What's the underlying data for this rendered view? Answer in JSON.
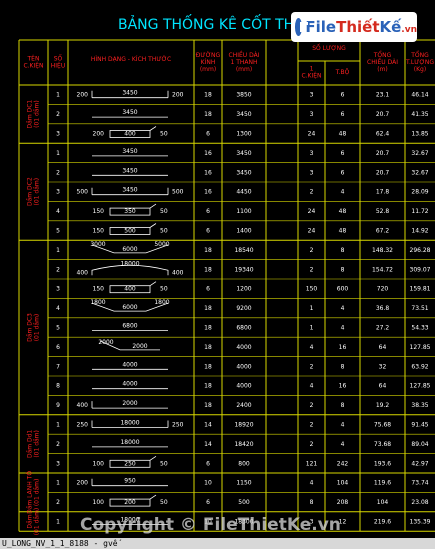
{
  "sheet": {
    "title": "BẢNG THỐNG KÊ CỐT TH",
    "watermark": "Copyright © FileThietKe.vn",
    "command_line": "U_LONG_NV_1_1_8188 - gvế"
  },
  "logo": {
    "part1": "File",
    "part2": "Thiết",
    "part3": "Kế",
    "suffix": ".vn"
  },
  "headers": {
    "ten_ck": "TÊN\nC.KIỆN",
    "so_hieu": "SỐ\nHIỆU",
    "hinh_dang": "HÌNH DẠNG - KÍCH THƯỚC",
    "duong_kinh": "ĐƯỜNG\nKÍNH\n(mm)",
    "chieu_dai": "CHIỀU DÀI\n1 THANH\n(mm)",
    "so_luong": "SỐ LƯỢNG",
    "sl_1ck": "1\nC.KIỆN",
    "sl_tbo": "T.BỘ",
    "tong_cd": "TỔNG\nCHIỀU DÀI\n(m)",
    "tong_tl": "TỔNG\nT.LƯỢNG\n(Kg)"
  },
  "groups": [
    {
      "label": "Dầm DC1",
      "sub": "(01 dầm)"
    },
    {
      "label": "Dầm DC2",
      "sub": "(01 dầm)"
    },
    {
      "label": "Dầm DC3",
      "sub": "(01 dầm)"
    },
    {
      "label": "Dầm Dd1",
      "sub": "(01 dầm)"
    },
    {
      "label": "Dầm LANH TÔ",
      "sub": "(01 dầm)"
    },
    {
      "label": "Dầm",
      "sub": "(01 dầm)"
    }
  ],
  "rows": [
    {
      "no": "1",
      "shape": "hook_both",
      "dims": [
        "200",
        "3450",
        "200"
      ],
      "d": "18",
      "len": "3850",
      "n1": "3",
      "nt": "6",
      "tl": "23.1",
      "tw": "46.14"
    },
    {
      "no": "2",
      "shape": "straight",
      "dims": [
        "3450"
      ],
      "d": "18",
      "len": "3450",
      "n1": "3",
      "nt": "6",
      "tl": "20.7",
      "tw": "41.35"
    },
    {
      "no": "3",
      "shape": "stirrup",
      "dims": [
        "200",
        "400",
        "50"
      ],
      "d": "6",
      "len": "1300",
      "n1": "24",
      "nt": "48",
      "tl": "62.4",
      "tw": "13.85"
    },
    {
      "no": "1",
      "shape": "straight",
      "dims": [
        "3450"
      ],
      "d": "16",
      "len": "3450",
      "n1": "3",
      "nt": "6",
      "tl": "20.7",
      "tw": "32.67"
    },
    {
      "no": "2",
      "shape": "straight",
      "dims": [
        "3450"
      ],
      "d": "16",
      "len": "3450",
      "n1": "3",
      "nt": "6",
      "tl": "20.7",
      "tw": "32.67"
    },
    {
      "no": "3",
      "shape": "hook_both",
      "dims": [
        "500",
        "3450",
        "500"
      ],
      "d": "16",
      "len": "4450",
      "n1": "2",
      "nt": "4",
      "tl": "17.8",
      "tw": "28.09"
    },
    {
      "no": "4",
      "shape": "stirrup",
      "dims": [
        "150",
        "350",
        "50"
      ],
      "d": "6",
      "len": "1100",
      "n1": "24",
      "nt": "48",
      "tl": "52.8",
      "tw": "11.72"
    },
    {
      "no": "5",
      "shape": "stirrup",
      "dims": [
        "150",
        "500",
        "50"
      ],
      "d": "6",
      "len": "1400",
      "n1": "24",
      "nt": "48",
      "tl": "67.2",
      "tw": "14.92"
    },
    {
      "no": "1",
      "shape": "bent",
      "dims": [
        "3000",
        "6000",
        "5000"
      ],
      "d": "18",
      "len": "18540",
      "n1": "2",
      "nt": "8",
      "tl": "148.32",
      "tw": "296.28"
    },
    {
      "no": "2",
      "shape": "arc_hooks",
      "dims": [
        "400",
        "18000",
        "400"
      ],
      "d": "18",
      "len": "19340",
      "n1": "2",
      "nt": "8",
      "tl": "154.72",
      "tw": "309.07"
    },
    {
      "no": "3",
      "shape": "stirrup",
      "dims": [
        "150",
        "400",
        "50"
      ],
      "d": "6",
      "len": "1200",
      "n1": "150",
      "nt": "600",
      "tl": "720",
      "tw": "159.81"
    },
    {
      "no": "4",
      "shape": "bent",
      "dims": [
        "1800",
        "6000",
        "1800"
      ],
      "d": "18",
      "len": "9200",
      "n1": "1",
      "nt": "4",
      "tl": "36.8",
      "tw": "73.51"
    },
    {
      "no": "5",
      "shape": "straight",
      "dims": [
        "6800"
      ],
      "d": "18",
      "len": "6800",
      "n1": "1",
      "nt": "4",
      "tl": "27.2",
      "tw": "54.33"
    },
    {
      "no": "6",
      "shape": "slant",
      "dims": [
        "2000",
        "2000"
      ],
      "d": "18",
      "len": "4000",
      "n1": "4",
      "nt": "16",
      "tl": "64",
      "tw": "127.85"
    },
    {
      "no": "7",
      "shape": "straight",
      "dims": [
        "4000"
      ],
      "d": "18",
      "len": "4000",
      "n1": "2",
      "nt": "8",
      "tl": "32",
      "tw": "63.92"
    },
    {
      "no": "8",
      "shape": "straight",
      "dims": [
        "4000"
      ],
      "d": "18",
      "len": "4000",
      "n1": "4",
      "nt": "16",
      "tl": "64",
      "tw": "127.85"
    },
    {
      "no": "9",
      "shape": "hook_left",
      "dims": [
        "400",
        "2000"
      ],
      "d": "18",
      "len": "2400",
      "n1": "2",
      "nt": "8",
      "tl": "19.2",
      "tw": "38.35"
    },
    {
      "no": "1",
      "shape": "hook_both",
      "dims": [
        "250",
        "18000",
        "250"
      ],
      "d": "14",
      "len": "18920",
      "n1": "2",
      "nt": "4",
      "tl": "75.68",
      "tw": "91.45"
    },
    {
      "no": "2",
      "shape": "straight",
      "dims": [
        "18000"
      ],
      "d": "14",
      "len": "18420",
      "n1": "2",
      "nt": "4",
      "tl": "73.68",
      "tw": "89.04"
    },
    {
      "no": "3",
      "shape": "stirrup",
      "dims": [
        "100",
        "250",
        "50"
      ],
      "d": "6",
      "len": "800",
      "n1": "121",
      "nt": "242",
      "tl": "193.6",
      "tw": "42.97"
    },
    {
      "no": "1",
      "shape": "hook_left",
      "dims": [
        "200",
        "950"
      ],
      "d": "10",
      "len": "1150",
      "n1": "4",
      "nt": "104",
      "tl": "119.6",
      "tw": "73.74"
    },
    {
      "no": "2",
      "shape": "stirrup",
      "dims": [
        "100",
        "200",
        "50"
      ],
      "d": "6",
      "len": "500",
      "n1": "8",
      "nt": "208",
      "tl": "104",
      "tw": "23.08"
    },
    {
      "no": "1",
      "shape": "straight",
      "dims": [
        "18000"
      ],
      "d": "10",
      "len": "18300",
      "n1": "3",
      "nt": "12",
      "tl": "219.6",
      "tw": "135.39"
    }
  ]
}
